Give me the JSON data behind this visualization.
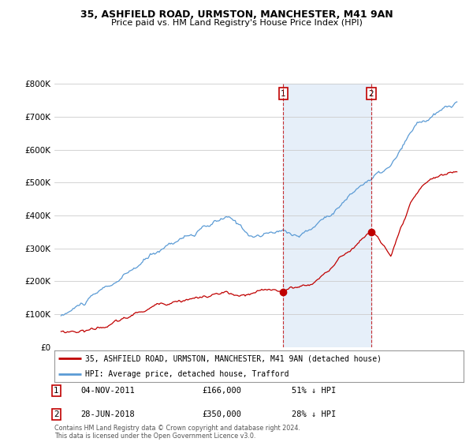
{
  "title": "35, ASHFIELD ROAD, URMSTON, MANCHESTER, M41 9AN",
  "subtitle": "Price paid vs. HM Land Registry's House Price Index (HPI)",
  "hpi_label": "HPI: Average price, detached house, Trafford",
  "price_label": "35, ASHFIELD ROAD, URMSTON, MANCHESTER, M41 9AN (detached house)",
  "transaction1_label": "04-NOV-2011",
  "transaction1_price": "£166,000",
  "transaction1_hpi": "51% ↓ HPI",
  "transaction2_label": "28-JUN-2018",
  "transaction2_price": "£350,000",
  "transaction2_hpi": "28% ↓ HPI",
  "footer": "Contains HM Land Registry data © Crown copyright and database right 2024.\nThis data is licensed under the Open Government Licence v3.0.",
  "hpi_color": "#5b9bd5",
  "hpi_fill_color": "#dce9f7",
  "price_color": "#c00000",
  "t1_x": 2011.85,
  "t1_y": 166000,
  "t2_x": 2018.5,
  "t2_y": 350000,
  "ylim": [
    0,
    800000
  ],
  "yticks": [
    0,
    100000,
    200000,
    300000,
    400000,
    500000,
    600000,
    700000,
    800000
  ],
  "xlim_start": 1994.5,
  "xlim_end": 2025.5
}
